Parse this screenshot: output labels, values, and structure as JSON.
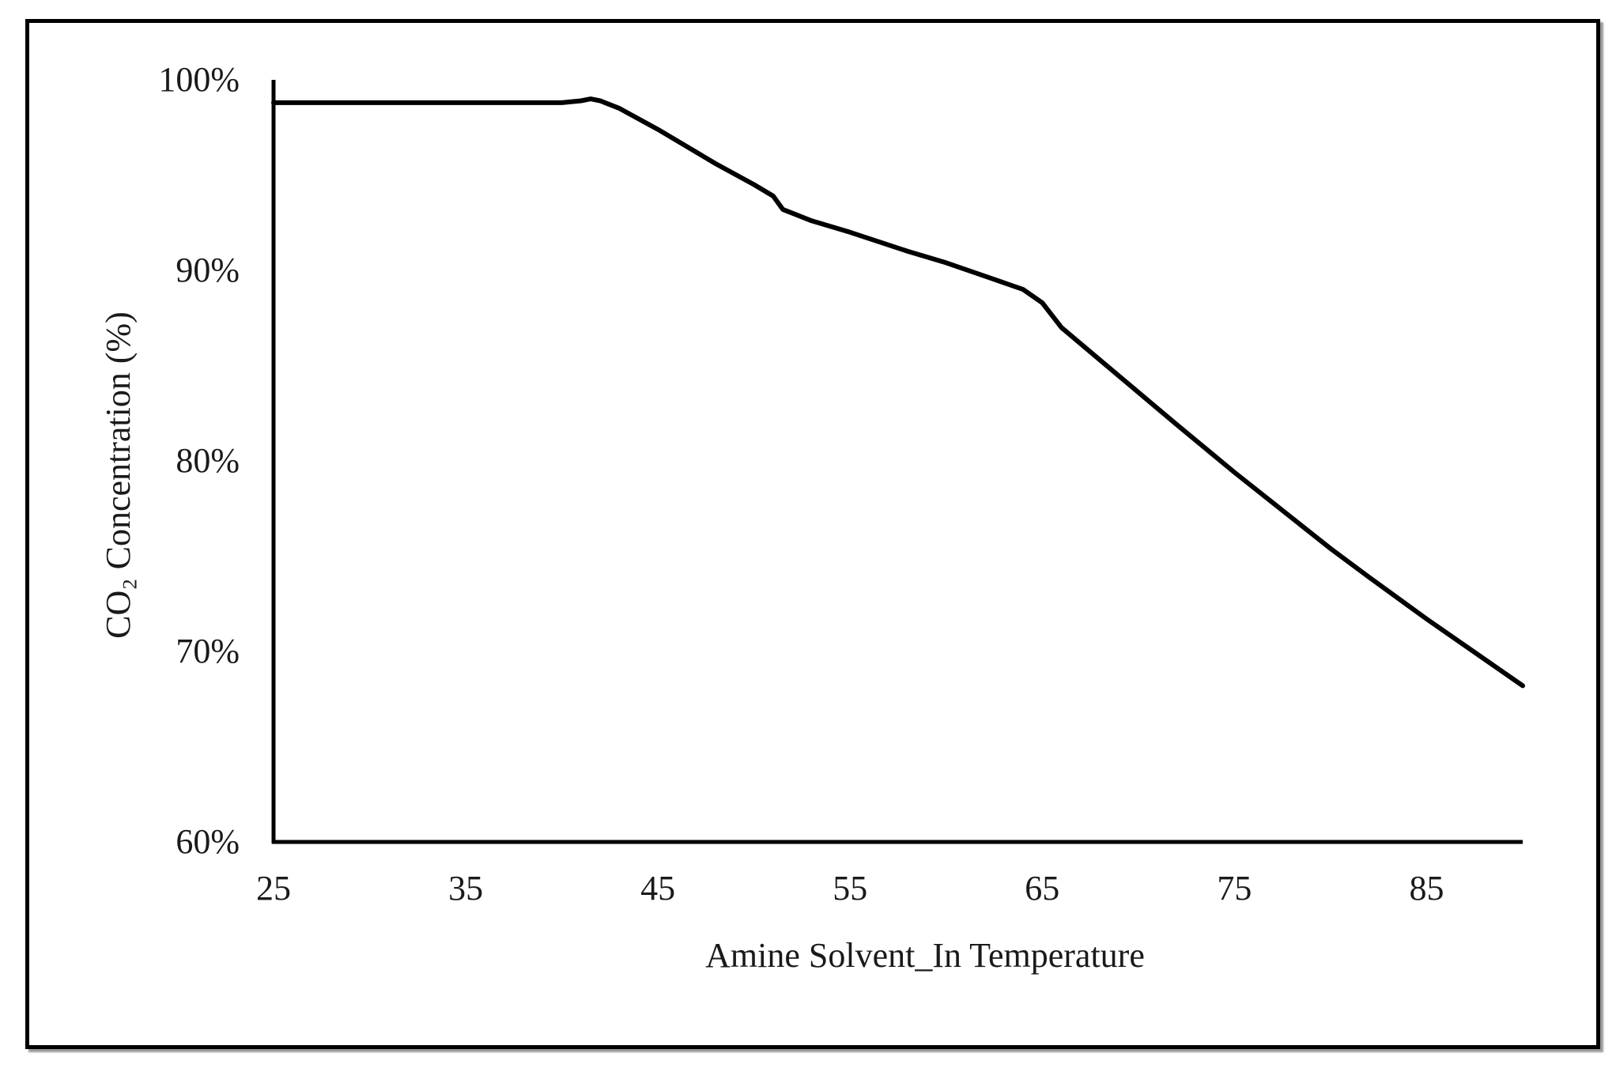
{
  "chart_data": {
    "type": "line",
    "title": "",
    "xlabel": "Amine Solvent_In Temperature",
    "ylabel": "CO₂ Concentration (%)",
    "xlim": [
      25,
      90
    ],
    "ylim": [
      60,
      100
    ],
    "x_ticks": [
      25,
      35,
      45,
      55,
      65,
      75,
      85
    ],
    "x_tick_labels": [
      "25",
      "35",
      "45",
      "55",
      "65",
      "75",
      "85"
    ],
    "y_ticks": [
      60,
      70,
      80,
      90,
      100
    ],
    "y_tick_labels": [
      "60%",
      "70%",
      "80%",
      "90%",
      "100%"
    ],
    "grid": false,
    "legend": "none",
    "line_color": "#000000",
    "series": [
      {
        "x": [
          25,
          30,
          35,
          40,
          41,
          41.5,
          42,
          43,
          45,
          48,
          50,
          51,
          51.5,
          52,
          53,
          55,
          58,
          60,
          62,
          64,
          65,
          66,
          68,
          70,
          72,
          75,
          78,
          80,
          82,
          85,
          88,
          90
        ],
        "y": [
          98.8,
          98.8,
          98.8,
          98.8,
          98.9,
          99.0,
          98.9,
          98.5,
          97.4,
          95.6,
          94.5,
          93.9,
          93.2,
          93.0,
          92.6,
          92.0,
          91.0,
          90.4,
          89.7,
          89.0,
          88.3,
          87.0,
          85.3,
          83.6,
          81.9,
          79.4,
          77.0,
          75.4,
          73.9,
          71.7,
          69.6,
          68.2
        ]
      }
    ]
  }
}
